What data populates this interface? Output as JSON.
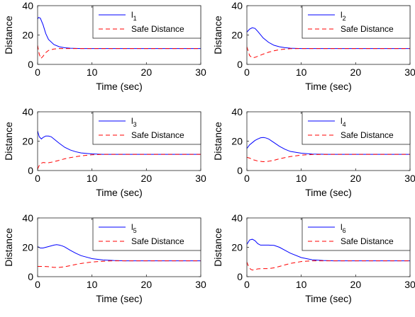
{
  "chart_data": [
    {
      "type": "line",
      "xlabel": "Time (sec)",
      "ylabel": "Distance",
      "xlim": [
        0,
        30
      ],
      "ylim": [
        0,
        40
      ],
      "xticks": [
        "0",
        "10",
        "20",
        "30"
      ],
      "yticks": [
        "0",
        "20",
        "40"
      ],
      "legend_position": "top-right",
      "series": [
        {
          "label_main": "l",
          "label_sub": "1",
          "color": "#0000ff",
          "dash": "solid",
          "x": [
            0,
            0.2,
            0.5,
            1,
            1.5,
            2,
            3,
            4,
            5,
            6,
            8,
            10,
            15,
            20,
            30
          ],
          "y": [
            31,
            32,
            31.5,
            27,
            21,
            17,
            13.5,
            12,
            11.3,
            11,
            10.8,
            10.8,
            10.8,
            10.8,
            10.8
          ]
        },
        {
          "name": "Safe Distance",
          "color": "#ff0000",
          "dash": "dashed",
          "x": [
            0,
            0.3,
            0.6,
            1,
            1.5,
            2,
            3,
            4,
            5,
            6,
            8,
            10,
            15,
            20,
            30
          ],
          "y": [
            13,
            7,
            4,
            5.5,
            8,
            9.5,
            10.5,
            10.8,
            10.8,
            10.8,
            10.8,
            10.8,
            10.8,
            10.8,
            10.8
          ]
        }
      ]
    },
    {
      "type": "line",
      "xlabel": "Time (sec)",
      "ylabel": "Distance",
      "xlim": [
        0,
        30
      ],
      "ylim": [
        0,
        40
      ],
      "xticks": [
        "0",
        "10",
        "20",
        "30"
      ],
      "yticks": [
        "0",
        "20",
        "40"
      ],
      "legend_position": "top-right",
      "series": [
        {
          "label_main": "l",
          "label_sub": "2",
          "color": "#0000ff",
          "dash": "solid",
          "x": [
            0,
            0.5,
            1,
            1.5,
            2,
            3,
            4,
            5,
            6,
            7,
            8,
            10,
            15,
            20,
            30
          ],
          "y": [
            22,
            24,
            25,
            24.5,
            22.5,
            18,
            15,
            13,
            12,
            11.4,
            11,
            10.8,
            10.8,
            10.8,
            10.8
          ]
        },
        {
          "name": "Safe Distance",
          "color": "#ff0000",
          "dash": "dashed",
          "x": [
            0,
            0.5,
            1,
            1.5,
            2,
            3,
            4,
            5,
            6,
            7,
            8,
            10,
            15,
            20,
            30
          ],
          "y": [
            12,
            6,
            4.5,
            4.8,
            5.5,
            7,
            8.3,
            9.3,
            10,
            10.4,
            10.7,
            10.8,
            10.8,
            10.8,
            10.8
          ]
        }
      ]
    },
    {
      "type": "line",
      "xlabel": "Time (sec)",
      "ylabel": "Distance",
      "xlim": [
        0,
        30
      ],
      "ylim": [
        0,
        40
      ],
      "xticks": [
        "0",
        "10",
        "20",
        "30"
      ],
      "yticks": [
        "0",
        "20",
        "40"
      ],
      "legend_position": "top-right",
      "series": [
        {
          "label_main": "l",
          "label_sub": "3",
          "color": "#0000ff",
          "dash": "solid",
          "x": [
            0,
            0.3,
            0.7,
            1,
            1.5,
            2,
            2.5,
            3,
            4,
            5,
            6,
            7,
            8,
            10,
            12,
            15,
            20,
            30
          ],
          "y": [
            27,
            23,
            21.5,
            22.5,
            23.5,
            23.5,
            23,
            21.5,
            18.5,
            15.8,
            14,
            12.8,
            12,
            11.3,
            11,
            11,
            11,
            11
          ]
        },
        {
          "name": "Safe Distance",
          "color": "#ff0000",
          "dash": "dashed",
          "x": [
            0,
            0.3,
            0.7,
            1,
            1.5,
            2,
            3,
            4,
            5,
            6,
            8,
            10,
            12,
            15,
            20,
            30
          ],
          "y": [
            1,
            3.5,
            5,
            5.5,
            5.3,
            5.3,
            6,
            7,
            8,
            8.8,
            10,
            10.7,
            11,
            11,
            11,
            11
          ]
        }
      ]
    },
    {
      "type": "line",
      "xlabel": "Time (sec)",
      "ylabel": "Distance",
      "xlim": [
        0,
        30
      ],
      "ylim": [
        0,
        40
      ],
      "xticks": [
        "0",
        "10",
        "20",
        "30"
      ],
      "yticks": [
        "0",
        "20",
        "40"
      ],
      "legend_position": "top-right",
      "series": [
        {
          "label_main": "l",
          "label_sub": "4",
          "color": "#0000ff",
          "dash": "solid",
          "x": [
            0,
            0.5,
            1,
            1.5,
            2,
            2.5,
            3,
            3.5,
            4,
            5,
            6,
            7,
            8,
            10,
            12,
            15,
            20,
            30
          ],
          "y": [
            15,
            17.5,
            19,
            20.5,
            21.5,
            22.3,
            22.5,
            22.2,
            21.5,
            19,
            16.5,
            14.5,
            13,
            11.8,
            11.2,
            11,
            11,
            11
          ]
        },
        {
          "name": "Safe Distance",
          "color": "#ff0000",
          "dash": "dashed",
          "x": [
            0,
            0.5,
            1,
            2,
            3,
            4,
            5,
            6,
            7,
            8,
            10,
            12,
            15,
            20,
            30
          ],
          "y": [
            9,
            8.5,
            7.5,
            6.5,
            6,
            6.3,
            7,
            8,
            8.8,
            9.5,
            10.5,
            10.9,
            11,
            11,
            11
          ]
        }
      ]
    },
    {
      "type": "line",
      "xlabel": "Time (sec)",
      "ylabel": "Distance",
      "xlim": [
        0,
        30
      ],
      "ylim": [
        0,
        40
      ],
      "xticks": [
        "0",
        "10",
        "20",
        "30"
      ],
      "yticks": [
        "0",
        "20",
        "40"
      ],
      "legend_position": "top-right",
      "series": [
        {
          "label_main": "l",
          "label_sub": "5",
          "color": "#0000ff",
          "dash": "solid",
          "x": [
            0,
            0.5,
            1,
            1.5,
            2,
            3,
            3.5,
            4,
            4.5,
            5,
            6,
            7,
            8,
            10,
            12,
            14,
            16,
            20,
            30
          ],
          "y": [
            20.5,
            19.5,
            19.5,
            20,
            20.5,
            21.5,
            21.8,
            21.5,
            21,
            20.2,
            18,
            16,
            14.3,
            12.3,
            11.4,
            11,
            10.8,
            10.8,
            10.8
          ]
        },
        {
          "name": "Safe Distance",
          "color": "#ff0000",
          "dash": "dashed",
          "x": [
            0,
            1,
            2,
            3,
            4,
            5,
            6,
            7,
            8,
            10,
            12,
            14,
            16,
            20,
            30
          ],
          "y": [
            7,
            7,
            6.8,
            6.3,
            6.3,
            6.8,
            7.5,
            8.3,
            9,
            10,
            10.5,
            10.8,
            10.8,
            10.8,
            10.8
          ]
        }
      ]
    },
    {
      "type": "line",
      "xlabel": "Time (sec)",
      "ylabel": "Distance",
      "xlim": [
        0,
        30
      ],
      "ylim": [
        0,
        40
      ],
      "xticks": [
        "0",
        "10",
        "20",
        "30"
      ],
      "yticks": [
        "0",
        "20",
        "40"
      ],
      "legend_position": "top-right",
      "series": [
        {
          "label_main": "l",
          "label_sub": "6",
          "color": "#0000ff",
          "dash": "solid",
          "x": [
            0,
            0.5,
            1,
            1.5,
            2,
            2.5,
            3,
            4,
            5,
            6,
            7,
            8,
            10,
            12,
            14,
            16,
            20,
            30
          ],
          "y": [
            22,
            25,
            25.5,
            24.5,
            22.5,
            21.5,
            21.5,
            21.5,
            21.3,
            20,
            18,
            16,
            13,
            11.5,
            11,
            10.8,
            10.8,
            10.8
          ]
        },
        {
          "name": "Safe Distance",
          "color": "#ff0000",
          "dash": "dashed",
          "x": [
            0,
            0.3,
            0.7,
            1,
            1.5,
            2,
            3,
            4,
            5,
            6,
            7,
            8,
            10,
            12,
            14,
            16,
            20,
            30
          ],
          "y": [
            10,
            7,
            5,
            4.5,
            4.8,
            5.3,
            5.5,
            5.5,
            6,
            7,
            8,
            9,
            10.3,
            10.8,
            10.8,
            10.8,
            10.8,
            10.8
          ]
        }
      ]
    }
  ]
}
